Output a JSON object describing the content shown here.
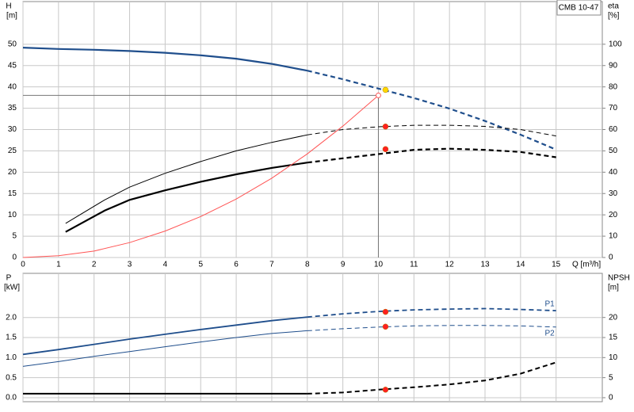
{
  "model_label": "CMB 10-47",
  "chart_data": [
    {
      "type": "line",
      "ylabel": "H",
      "yunit": "[m]",
      "y2label": "eta",
      "y2unit": "[%]",
      "xlabel": "Q [m³/h]",
      "xlim": [
        0,
        16.3
      ],
      "xticks": [
        0,
        1,
        2,
        3,
        4,
        5,
        6,
        7,
        8,
        9,
        10,
        11,
        12,
        13,
        14,
        15
      ],
      "ylim": [
        0,
        60
      ],
      "yticks": [
        0,
        5,
        10,
        15,
        20,
        25,
        30,
        35,
        40,
        45,
        50
      ],
      "y2lim": [
        0,
        120
      ],
      "y2ticks": [
        0,
        10,
        20,
        30,
        40,
        50,
        60,
        70,
        80,
        90,
        100
      ],
      "grid": true,
      "show_xtick_labels": true,
      "series": [
        {
          "color": "#1f4e8c",
          "width": 2.2,
          "dash_from": 8,
          "x": [
            0,
            1,
            2,
            3,
            4,
            5,
            6,
            7,
            8,
            9,
            10,
            11,
            12,
            13,
            14,
            15
          ],
          "values": [
            49.2,
            48.9,
            48.7,
            48.4,
            48.0,
            47.4,
            46.6,
            45.4,
            43.8,
            41.8,
            39.6,
            37.4,
            34.9,
            32.0,
            28.8,
            25.3
          ]
        },
        {
          "color": "#000000",
          "width": 1,
          "dash_from": 8,
          "axis": "y2",
          "x": [
            1.2,
            2.3,
            3,
            4,
            5,
            6,
            7,
            8,
            9,
            10,
            11,
            12,
            13,
            14,
            15
          ],
          "values": [
            16,
            27,
            33,
            39.5,
            45,
            50,
            54,
            57.5,
            60,
            61.3,
            62,
            62,
            61.5,
            60,
            57
          ]
        },
        {
          "color": "#000000",
          "width": 2.2,
          "dash_from": 8,
          "axis": "y2",
          "x": [
            1.2,
            2.3,
            3,
            4,
            5,
            6,
            7,
            8,
            9,
            10,
            11,
            12,
            13,
            14,
            15
          ],
          "values": [
            12,
            22,
            27,
            31.5,
            35.5,
            39,
            42,
            44.5,
            46.5,
            48.5,
            50.5,
            51,
            50.5,
            49.5,
            47
          ]
        },
        {
          "color": "#ff5555",
          "width": 1,
          "x": [
            0,
            1,
            2,
            3,
            4,
            5,
            6,
            7,
            8,
            9,
            10
          ],
          "values": [
            0,
            0.4,
            1.5,
            3.5,
            6.2,
            9.6,
            13.7,
            18.6,
            24.3,
            30.8,
            38
          ]
        }
      ],
      "duty_point": {
        "x": 10,
        "y": 38,
        "color": "#ff5555"
      },
      "markers": [
        {
          "x": 10.2,
          "y": 39.3,
          "color": "#ffd700"
        },
        {
          "x": 10.2,
          "y": 61.4,
          "axis": "y2",
          "color": "#ff2020"
        },
        {
          "x": 10.2,
          "y": 50.8,
          "axis": "y2",
          "color": "#ff2020"
        }
      ]
    },
    {
      "type": "line",
      "ylabel": "P",
      "yunit": "[kW]",
      "y2label": "NPSH",
      "y2unit": "[m]",
      "xlim": [
        0,
        16.3
      ],
      "xticks": [
        0,
        1,
        2,
        3,
        4,
        5,
        6,
        7,
        8,
        9,
        10,
        11,
        12,
        13,
        14,
        15
      ],
      "ylim": [
        -0.1,
        3.1
      ],
      "yticks": [
        {
          "value": 0,
          "label": "0.0"
        },
        {
          "value": 0.5,
          "label": "0.5"
        },
        {
          "value": 1,
          "label": "1.0"
        },
        {
          "value": 1.5,
          "label": "1.5"
        },
        {
          "value": 2,
          "label": "2.0"
        }
      ],
      "y2lim": [
        -1,
        31
      ],
      "y2ticks": [
        0,
        5,
        10,
        15,
        20
      ],
      "grid": true,
      "show_xtick_labels": false,
      "series": [
        {
          "name": "P1",
          "color": "#1f4e8c",
          "width": 1.8,
          "dash_from": 8,
          "x": [
            0,
            1,
            2,
            3,
            4,
            5,
            6,
            7,
            8,
            9,
            10,
            11,
            12,
            13,
            14,
            15
          ],
          "values": [
            1.08,
            1.2,
            1.33,
            1.46,
            1.58,
            1.7,
            1.81,
            1.92,
            2.01,
            2.09,
            2.15,
            2.19,
            2.21,
            2.22,
            2.2,
            2.17
          ]
        },
        {
          "name": "P2",
          "color": "#1f4e8c",
          "width": 1,
          "dash_from": 8,
          "x": [
            0,
            1,
            2,
            3,
            4,
            5,
            6,
            7,
            8,
            9,
            10,
            11,
            12,
            13,
            14,
            15
          ],
          "values": [
            0.78,
            0.9,
            1.03,
            1.15,
            1.27,
            1.39,
            1.5,
            1.6,
            1.67,
            1.72,
            1.76,
            1.79,
            1.8,
            1.8,
            1.79,
            1.76
          ]
        },
        {
          "color": "#000000",
          "width": 2,
          "dash_from": 8,
          "axis": "y2",
          "x": [
            0,
            3,
            4,
            5,
            6,
            7,
            8,
            9,
            10,
            11,
            12,
            13,
            14,
            15
          ],
          "values": [
            1,
            1,
            1,
            1,
            1,
            1,
            1,
            1.3,
            2.0,
            2.6,
            3.3,
            4.3,
            6.0,
            8.8
          ]
        }
      ],
      "markers": [
        {
          "x": 10.2,
          "y": 2.14,
          "color": "#ff2020"
        },
        {
          "x": 10.2,
          "y": 1.77,
          "color": "#ff2020"
        },
        {
          "x": 10.2,
          "y": 2.0,
          "axis": "y2",
          "color": "#ff2020"
        }
      ]
    }
  ]
}
